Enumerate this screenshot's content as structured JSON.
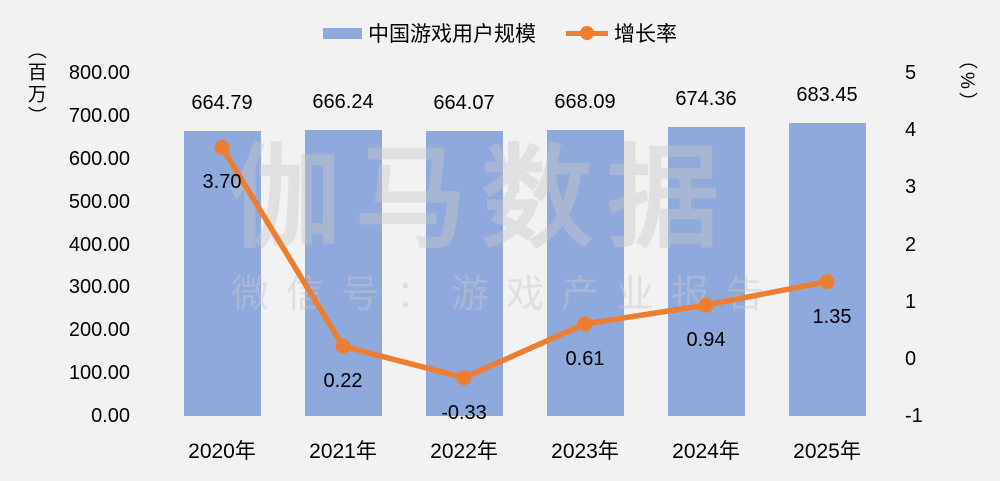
{
  "chart_data": {
    "type": "bar+line combo",
    "background": "#F2F2F2",
    "categories": [
      "2020年",
      "2021年",
      "2022年",
      "2023年",
      "2024年",
      "2025年"
    ],
    "series": [
      {
        "name": "中国游戏用户规模",
        "type": "bar",
        "axis": "left",
        "color": "#8EA9DB",
        "values": [
          664.79,
          666.24,
          664.07,
          668.09,
          674.36,
          683.45
        ],
        "labels": [
          "664.79",
          "666.24",
          "664.07",
          "668.09",
          "674.36",
          "683.45"
        ]
      },
      {
        "name": "增长率",
        "type": "line",
        "axis": "right",
        "color": "#ED7D31",
        "values": [
          3.7,
          0.22,
          -0.33,
          0.61,
          0.94,
          1.35
        ],
        "labels": [
          "3.70",
          "0.22",
          "-0.33",
          "0.61",
          "0.94",
          "1.35"
        ]
      }
    ],
    "left_axis": {
      "title": "（百万）",
      "min": 0,
      "max": 800,
      "ticks": [
        "800.00",
        "700.00",
        "600.00",
        "500.00",
        "400.00",
        "300.00",
        "200.00",
        "100.00",
        "0.00"
      ]
    },
    "right_axis": {
      "title": "（%）",
      "min": -1,
      "max": 5,
      "ticks": [
        "5",
        "4",
        "3",
        "2",
        "1",
        "0",
        "-1"
      ]
    },
    "legend": [
      {
        "label": "中国游戏用户规模",
        "marker": "bar"
      },
      {
        "label": "增长率",
        "marker": "line"
      }
    ],
    "watermark": {
      "primary": "伽马数据",
      "secondary": "微信号：游戏产业报告"
    },
    "grid": "off",
    "legend_position": "top-center"
  }
}
